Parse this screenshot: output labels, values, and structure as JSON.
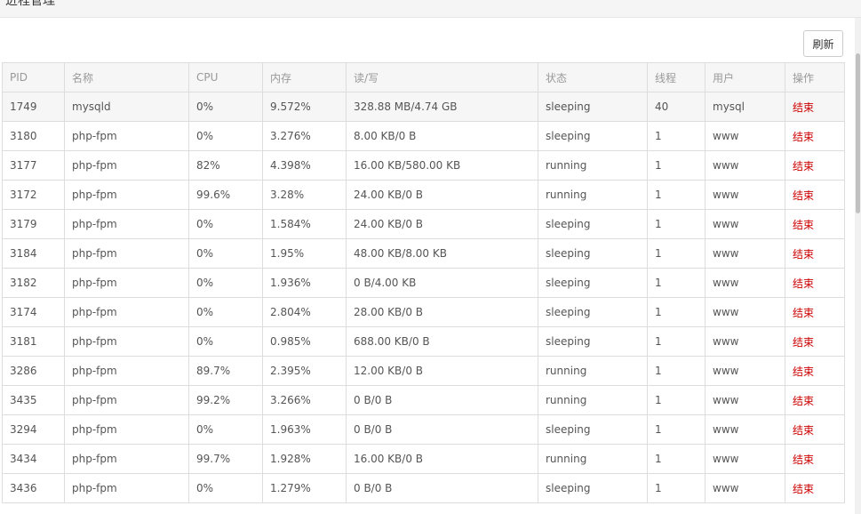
{
  "page": {
    "title": "进程管理"
  },
  "toolbar": {
    "refresh_label": "刷新"
  },
  "table": {
    "columns": [
      "PID",
      "名称",
      "CPU",
      "内存",
      "读/写",
      "状态",
      "线程",
      "用户",
      "操作"
    ],
    "rows": [
      {
        "pid": "1749",
        "name": "mysqld",
        "cpu": "0%",
        "mem": "9.572%",
        "rw": "328.88 MB/4.74 GB",
        "status": "sleeping",
        "threads": "40",
        "user": "mysql",
        "action": "结束"
      },
      {
        "pid": "3180",
        "name": "php-fpm",
        "cpu": "0%",
        "mem": "3.276%",
        "rw": "8.00 KB/0 B",
        "status": "sleeping",
        "threads": "1",
        "user": "www",
        "action": "结束"
      },
      {
        "pid": "3177",
        "name": "php-fpm",
        "cpu": "82%",
        "mem": "4.398%",
        "rw": "16.00 KB/580.00 KB",
        "status": "running",
        "threads": "1",
        "user": "www",
        "action": "结束"
      },
      {
        "pid": "3172",
        "name": "php-fpm",
        "cpu": "99.6%",
        "mem": "3.28%",
        "rw": "24.00 KB/0 B",
        "status": "running",
        "threads": "1",
        "user": "www",
        "action": "结束"
      },
      {
        "pid": "3179",
        "name": "php-fpm",
        "cpu": "0%",
        "mem": "1.584%",
        "rw": "24.00 KB/0 B",
        "status": "sleeping",
        "threads": "1",
        "user": "www",
        "action": "结束"
      },
      {
        "pid": "3184",
        "name": "php-fpm",
        "cpu": "0%",
        "mem": "1.95%",
        "rw": "48.00 KB/8.00 KB",
        "status": "sleeping",
        "threads": "1",
        "user": "www",
        "action": "结束"
      },
      {
        "pid": "3182",
        "name": "php-fpm",
        "cpu": "0%",
        "mem": "1.936%",
        "rw": "0 B/4.00 KB",
        "status": "sleeping",
        "threads": "1",
        "user": "www",
        "action": "结束"
      },
      {
        "pid": "3174",
        "name": "php-fpm",
        "cpu": "0%",
        "mem": "2.804%",
        "rw": "28.00 KB/0 B",
        "status": "sleeping",
        "threads": "1",
        "user": "www",
        "action": "结束"
      },
      {
        "pid": "3181",
        "name": "php-fpm",
        "cpu": "0%",
        "mem": "0.985%",
        "rw": "688.00 KB/0 B",
        "status": "sleeping",
        "threads": "1",
        "user": "www",
        "action": "结束"
      },
      {
        "pid": "3286",
        "name": "php-fpm",
        "cpu": "89.7%",
        "mem": "2.395%",
        "rw": "12.00 KB/0 B",
        "status": "running",
        "threads": "1",
        "user": "www",
        "action": "结束"
      },
      {
        "pid": "3435",
        "name": "php-fpm",
        "cpu": "99.2%",
        "mem": "3.266%",
        "rw": "0 B/0 B",
        "status": "running",
        "threads": "1",
        "user": "www",
        "action": "结束"
      },
      {
        "pid": "3294",
        "name": "php-fpm",
        "cpu": "0%",
        "mem": "1.963%",
        "rw": "0 B/0 B",
        "status": "sleeping",
        "threads": "1",
        "user": "www",
        "action": "结束"
      },
      {
        "pid": "3434",
        "name": "php-fpm",
        "cpu": "99.7%",
        "mem": "1.928%",
        "rw": "16.00 KB/0 B",
        "status": "running",
        "threads": "1",
        "user": "www",
        "action": "结束"
      },
      {
        "pid": "3436",
        "name": "php-fpm",
        "cpu": "0%",
        "mem": "1.279%",
        "rw": "0 B/0 B",
        "status": "sleeping",
        "threads": "1",
        "user": "www",
        "action": "结束"
      }
    ]
  },
  "colors": {
    "action_link": "#cc0000",
    "header_bg": "#f6f6f6",
    "border": "#dddddd"
  }
}
